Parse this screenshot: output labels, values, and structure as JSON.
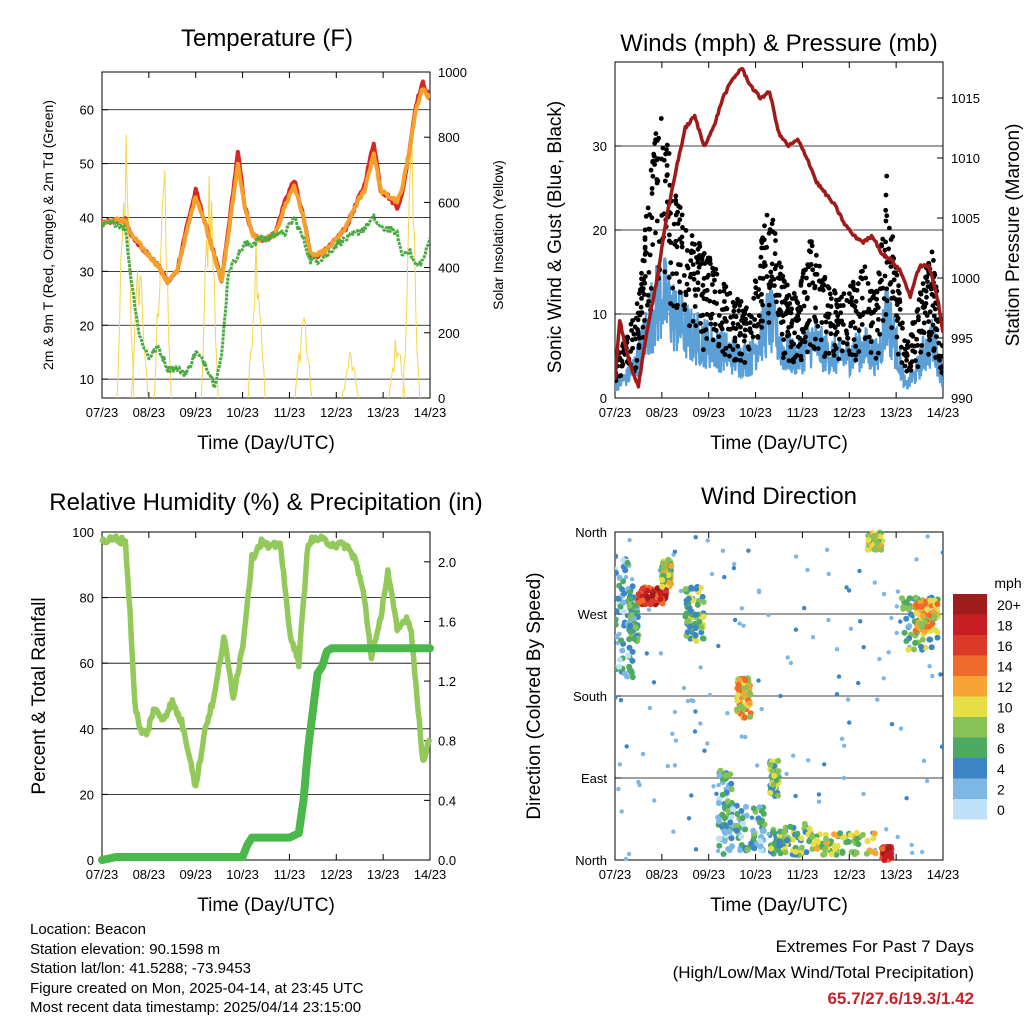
{
  "colors": {
    "red": "#d62728",
    "orange": "#f5a02a",
    "green": "#4aaa42",
    "yellow": "#f7d44a",
    "blue": "#5a9fd6",
    "black": "#000000",
    "maroon": "#a01a1a",
    "rh_light": "#92c95a",
    "precip": "#4ab84a",
    "extremes": "#c0262b"
  },
  "charts": [
    {
      "title": "Temperature (F)",
      "xlabel": "Time (Day/UTC)",
      "ylabel_left": "2m & 9m T (Red, Orange) & 2m Td (Green)",
      "ylabel_right": "Solar Insolation (Yellow)",
      "xticks": [
        "07/23",
        "08/23",
        "09/23",
        "10/23",
        "11/23",
        "12/23",
        "13/23",
        "14/23"
      ],
      "yticks_left": [
        "10",
        "20",
        "30",
        "40",
        "50",
        "60"
      ],
      "yticks_right": [
        "0",
        "200",
        "400",
        "600",
        "800",
        "1000"
      ]
    },
    {
      "title": "Winds (mph) & Pressure (mb)",
      "xlabel": "Time (Day/UTC)",
      "ylabel_left": "Sonic Wind & Gust (Blue, Black)",
      "ylabel_right": "Station Pressure (Maroon)",
      "xticks": [
        "07/23",
        "08/23",
        "09/23",
        "10/23",
        "11/23",
        "12/23",
        "13/23",
        "14/23"
      ],
      "yticks_left": [
        "0",
        "10",
        "20",
        "30"
      ],
      "yticks_right": [
        "990",
        "995",
        "1000",
        "1005",
        "1010",
        "1015"
      ]
    },
    {
      "title": "Relative Humidity (%) & Precipitation (in)",
      "xlabel": "Time (Day/UTC)",
      "ylabel_left": "Percent & Total Rainfall",
      "xticks": [
        "07/23",
        "08/23",
        "09/23",
        "10/23",
        "11/23",
        "12/23",
        "13/23",
        "14/23"
      ],
      "yticks_left": [
        "0",
        "20",
        "40",
        "60",
        "80",
        "100"
      ],
      "yticks_right": [
        "0.0",
        "0.4",
        "0.8",
        "1.2",
        "1.6",
        "2.0"
      ]
    },
    {
      "title": "Wind Direction",
      "xlabel": "Time (Day/UTC)",
      "ylabel_left": "Direction (Colored By Speed)",
      "xticks": [
        "07/23",
        "08/23",
        "09/23",
        "10/23",
        "11/23",
        "12/23",
        "13/23",
        "14/23"
      ],
      "yticks_left": [
        "North",
        "East",
        "South",
        "West",
        "North"
      ],
      "legend_title": "mph",
      "legend_labels": [
        "20+",
        "18",
        "16",
        "14",
        "12",
        "10",
        "8",
        "6",
        "4",
        "2",
        "0"
      ]
    }
  ],
  "chart_data": [
    {
      "type": "line",
      "title": "Temperature (F)",
      "x_range": [
        "07/23",
        "14/23"
      ],
      "ylim_left": [
        6.5,
        67
      ],
      "ylim_right": [
        0,
        1000
      ],
      "x_days": [
        0,
        0.3,
        0.5,
        0.6,
        0.8,
        1.0,
        1.2,
        1.4,
        1.6,
        1.8,
        2.0,
        2.2,
        2.4,
        2.55,
        2.7,
        2.9,
        3.05,
        3.2,
        3.35,
        3.5,
        3.7,
        3.9,
        4.1,
        4.3,
        4.45,
        4.6,
        4.8,
        5.0,
        5.2,
        5.4,
        5.6,
        5.8,
        5.95,
        6.1,
        6.3,
        6.4,
        6.55,
        6.7,
        6.85,
        7.0
      ],
      "series": [
        {
          "name": "2m T",
          "color": "#d62728",
          "values": [
            39,
            39.5,
            39.5,
            37,
            35,
            33,
            31,
            28,
            30,
            38,
            45,
            39,
            33,
            28,
            38,
            52,
            42,
            37,
            36,
            36,
            37,
            43,
            47,
            40,
            33,
            33,
            34,
            36,
            38,
            42,
            46,
            54,
            45,
            44,
            42,
            44,
            52,
            61,
            65,
            62
          ]
        },
        {
          "name": "9m T",
          "color": "#f5a02a",
          "values": [
            39,
            39.5,
            39.5,
            37,
            35,
            33,
            31,
            28,
            30,
            37,
            44,
            39,
            33,
            28,
            37,
            50,
            42,
            37,
            36,
            36,
            37,
            42,
            46,
            40,
            33,
            33,
            34,
            36,
            38,
            42,
            45,
            52,
            45,
            44,
            43,
            45,
            52,
            60,
            64,
            62
          ]
        },
        {
          "name": "2m Td",
          "color": "#4aaa42",
          "values": [
            38.5,
            39,
            38,
            30,
            18,
            14,
            16,
            12,
            12,
            11,
            15,
            13,
            9,
            14,
            30,
            33,
            35,
            35,
            36,
            36,
            37,
            37,
            40,
            36,
            32,
            32,
            33,
            35,
            36,
            37,
            38,
            40,
            38,
            38,
            37,
            33,
            34,
            31,
            32,
            36
          ]
        }
      ],
      "solar_insolation": {
        "peak_days": [
          0.5,
          0.8,
          1.3,
          2.3,
          3.3,
          4.3,
          5.3,
          6.3,
          6.6
        ],
        "peak_values": [
          930,
          550,
          920,
          930,
          650,
          350,
          170,
          240,
          880
        ]
      }
    },
    {
      "type": "scatter",
      "title": "Winds (mph) & Pressure (mb)",
      "x_range": [
        "07/23",
        "14/23"
      ],
      "ylim_left": [
        0,
        40
      ],
      "ylim_right": [
        990,
        1018
      ],
      "gust_envelope": {
        "x_days": [
          0,
          0.3,
          0.5,
          0.8,
          1.0,
          1.3,
          1.6,
          1.9,
          2.1,
          2.4,
          2.6,
          2.9,
          3.1,
          3.3,
          3.6,
          3.9,
          4.2,
          4.5,
          4.8,
          5.1,
          5.3,
          5.6,
          5.8,
          6.0,
          6.2,
          6.4,
          6.6,
          6.8,
          7.0
        ],
        "values": [
          5,
          8,
          12,
          30,
          35,
          24,
          20,
          18,
          16,
          14,
          12,
          11,
          18,
          24,
          14,
          12,
          20,
          14,
          12,
          14,
          16,
          13,
          27,
          16,
          6,
          10,
          15,
          18,
          6
        ]
      },
      "wind_envelope": {
        "x_days": [
          0,
          0.3,
          0.5,
          0.8,
          1.0,
          1.3,
          1.6,
          1.9,
          2.1,
          2.4,
          2.6,
          2.9,
          3.1,
          3.3,
          3.6,
          3.9,
          4.2,
          4.5,
          4.8,
          5.1,
          5.3,
          5.6,
          5.8,
          6.0,
          6.2,
          6.4,
          6.6,
          6.8,
          7.0
        ],
        "values": [
          2,
          4,
          7,
          15,
          18,
          14,
          11,
          10,
          9,
          8,
          7,
          7,
          11,
          14,
          8,
          7,
          10,
          8,
          7,
          8,
          9,
          7,
          15,
          9,
          2,
          4,
          8,
          10,
          3
        ]
      },
      "pressure": {
        "name": "Station Pressure",
        "color": "#a01a1a",
        "x_days": [
          0,
          0.1,
          0.3,
          0.5,
          0.7,
          0.9,
          1.1,
          1.3,
          1.5,
          1.7,
          1.9,
          2.1,
          2.3,
          2.5,
          2.7,
          2.9,
          3.1,
          3.3,
          3.5,
          3.7,
          3.9,
          4.1,
          4.3,
          4.5,
          4.7,
          4.9,
          5.1,
          5.3,
          5.5,
          5.7,
          5.9,
          6.1,
          6.3,
          6.5,
          6.7,
          6.9,
          7.0
        ],
        "values": [
          991.5,
          996.5,
          993,
          991,
          996,
          1000,
          1005,
          1009,
          1012.5,
          1013.5,
          1011,
          1012.5,
          1015,
          1016.5,
          1017.5,
          1016,
          1015,
          1015.5,
          1012,
          1011,
          1011.5,
          1010,
          1008,
          1007,
          1006,
          1004.5,
          1003.5,
          1003,
          1003.5,
          1002,
          1001.5,
          1000.5,
          998.5,
          1001,
          1001,
          998,
          995.5
        ]
      }
    },
    {
      "type": "line",
      "title": "Relative Humidity (%) & Precipitation (in)",
      "x_range": [
        "07/23",
        "14/23"
      ],
      "ylim_left": [
        0,
        100
      ],
      "ylim_right": [
        0,
        2.2
      ],
      "series": [
        {
          "name": "Relative Humidity",
          "color": "#92c95a",
          "x_days": [
            0,
            0.3,
            0.5,
            0.6,
            0.7,
            0.8,
            0.95,
            1.1,
            1.3,
            1.5,
            1.7,
            1.9,
            2.0,
            2.2,
            2.4,
            2.6,
            2.8,
            3.0,
            3.2,
            3.4,
            3.6,
            3.8,
            4.0,
            4.2,
            4.4,
            4.6,
            4.8,
            5.0,
            5.2,
            5.4,
            5.6,
            5.75,
            5.9,
            6.1,
            6.3,
            6.5,
            6.6,
            6.75,
            6.85,
            7.0
          ],
          "values": [
            97,
            98,
            97,
            75,
            48,
            40,
            38,
            46,
            43,
            48,
            42,
            30,
            22,
            40,
            50,
            68,
            50,
            65,
            92,
            97,
            95,
            97,
            70,
            60,
            97,
            98,
            97,
            96,
            96,
            92,
            80,
            62,
            70,
            88,
            70,
            74,
            70,
            45,
            30,
            38
          ]
        },
        {
          "name": "Total Precipitation",
          "color": "#4ab84a",
          "x_days": [
            0,
            0.3,
            1.0,
            2.0,
            3.0,
            3.1,
            3.2,
            3.5,
            4.0,
            4.2,
            4.3,
            4.4,
            4.5,
            4.6,
            4.7,
            4.75,
            4.8,
            4.9,
            5.0,
            5.5,
            6.0,
            6.5,
            7.0
          ],
          "values": [
            0,
            0.02,
            0.02,
            0.02,
            0.02,
            0.1,
            0.15,
            0.15,
            0.15,
            0.18,
            0.4,
            0.75,
            1.0,
            1.25,
            1.3,
            1.35,
            1.4,
            1.42,
            1.42,
            1.42,
            1.42,
            1.42,
            1.42
          ]
        }
      ]
    },
    {
      "type": "scatter",
      "title": "Wind Direction",
      "x_range": [
        "07/23",
        "14/23"
      ],
      "y_categories": [
        "North",
        "East",
        "South",
        "West",
        "North"
      ],
      "clusters": [
        {
          "x_days": [
            0.0,
            0.4
          ],
          "dir_deg": [
            200,
            340
          ],
          "speed": 3
        },
        {
          "x_days": [
            0.3,
            0.5
          ],
          "dir_deg": [
            240,
            290
          ],
          "speed": 5
        },
        {
          "x_days": [
            0.5,
            1.1
          ],
          "dir_deg": [
            280,
            300
          ],
          "speed": 17
        },
        {
          "x_days": [
            1.0,
            1.2
          ],
          "dir_deg": [
            300,
            330
          ],
          "speed": 9
        },
        {
          "x_days": [
            1.5,
            1.9
          ],
          "dir_deg": [
            240,
            300
          ],
          "speed": 7
        },
        {
          "x_days": [
            2.2,
            2.5
          ],
          "dir_deg": [
            5,
            100
          ],
          "speed": 4
        },
        {
          "x_days": [
            2.6,
            2.9
          ],
          "dir_deg": [
            155,
            200
          ],
          "speed": 11
        },
        {
          "x_days": [
            2.5,
            3.2
          ],
          "dir_deg": [
            10,
            60
          ],
          "speed": 4
        },
        {
          "x_days": [
            3.3,
            3.5
          ],
          "dir_deg": [
            70,
            110
          ],
          "speed": 7
        },
        {
          "x_days": [
            3.3,
            4.2
          ],
          "dir_deg": [
            5,
            40
          ],
          "speed": 7
        },
        {
          "x_days": [
            4.2,
            5.6
          ],
          "dir_deg": [
            5,
            30
          ],
          "speed": 9
        },
        {
          "x_days": [
            5.4,
            5.7
          ],
          "dir_deg": [
            340,
            360
          ],
          "speed": 9
        },
        {
          "x_days": [
            5.7,
            5.9
          ],
          "dir_deg": [
            0,
            15
          ],
          "speed": 18
        },
        {
          "x_days": [
            6.1,
            6.9
          ],
          "dir_deg": [
            230,
            290
          ],
          "speed": 6
        },
        {
          "x_days": [
            6.4,
            6.9
          ],
          "dir_deg": [
            250,
            285
          ],
          "speed": 11
        }
      ]
    }
  ],
  "info": {
    "location": "Location: Beacon",
    "elevation": "Station elevation: 90.1598 m",
    "latlon": "Station lat/lon: 41.5288; -73.9453",
    "created": "Figure created on Mon, 2025-04-14, at 23:45 UTC",
    "recent": "Most recent data timestamp: 2025/04/14 23:15:00"
  },
  "extremes": {
    "line1": "Extremes For Past 7 Days",
    "line2": "(High/Low/Max Wind/Total Precipitation)",
    "values": "65.7/27.6/19.3/1.42"
  }
}
